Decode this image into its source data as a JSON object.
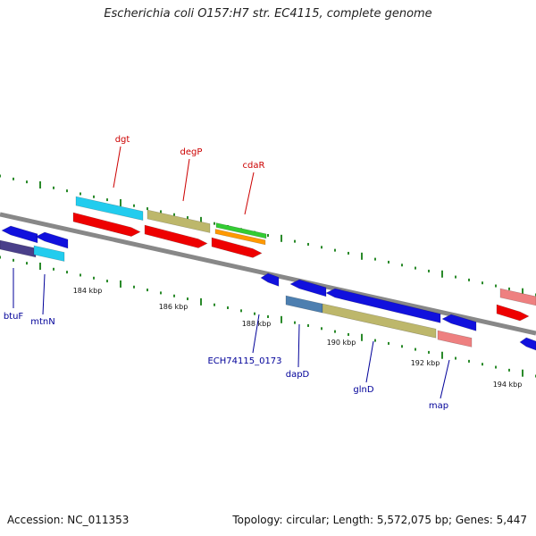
{
  "header": {
    "title": "Escherichia coli O157:H7 str. EC4115, complete genome"
  },
  "footer": {
    "accession": "Accession: NC_011353",
    "summary": "Topology: circular; Length: 5,572,075 bp; Genes: 5,447"
  },
  "scale_labels": [
    "184 kbp",
    "186 kbp",
    "188 kbp",
    "190 kbp",
    "192 kbp",
    "194 kbp"
  ],
  "gene_labels_top": [
    "dgt",
    "degP",
    "cdaR"
  ],
  "gene_labels_bottom": [
    "btuF",
    "mtnN",
    "ECH74115_0173",
    "dapD",
    "glnD",
    "map"
  ],
  "colors": {
    "backbone": "#888888",
    "tick": "#2a8a2a",
    "label_top": "#cc0000",
    "label_bottom": "#000099",
    "red": "#ee0000",
    "blue": "#1111dd",
    "cyan": "#22ccee",
    "khaki": "#bdb76b",
    "green": "#33cc33",
    "orange": "#ff9900",
    "pink": "#ee8080",
    "steelblue": "#4d7fb0",
    "darkslate": "#4a3f8a"
  }
}
